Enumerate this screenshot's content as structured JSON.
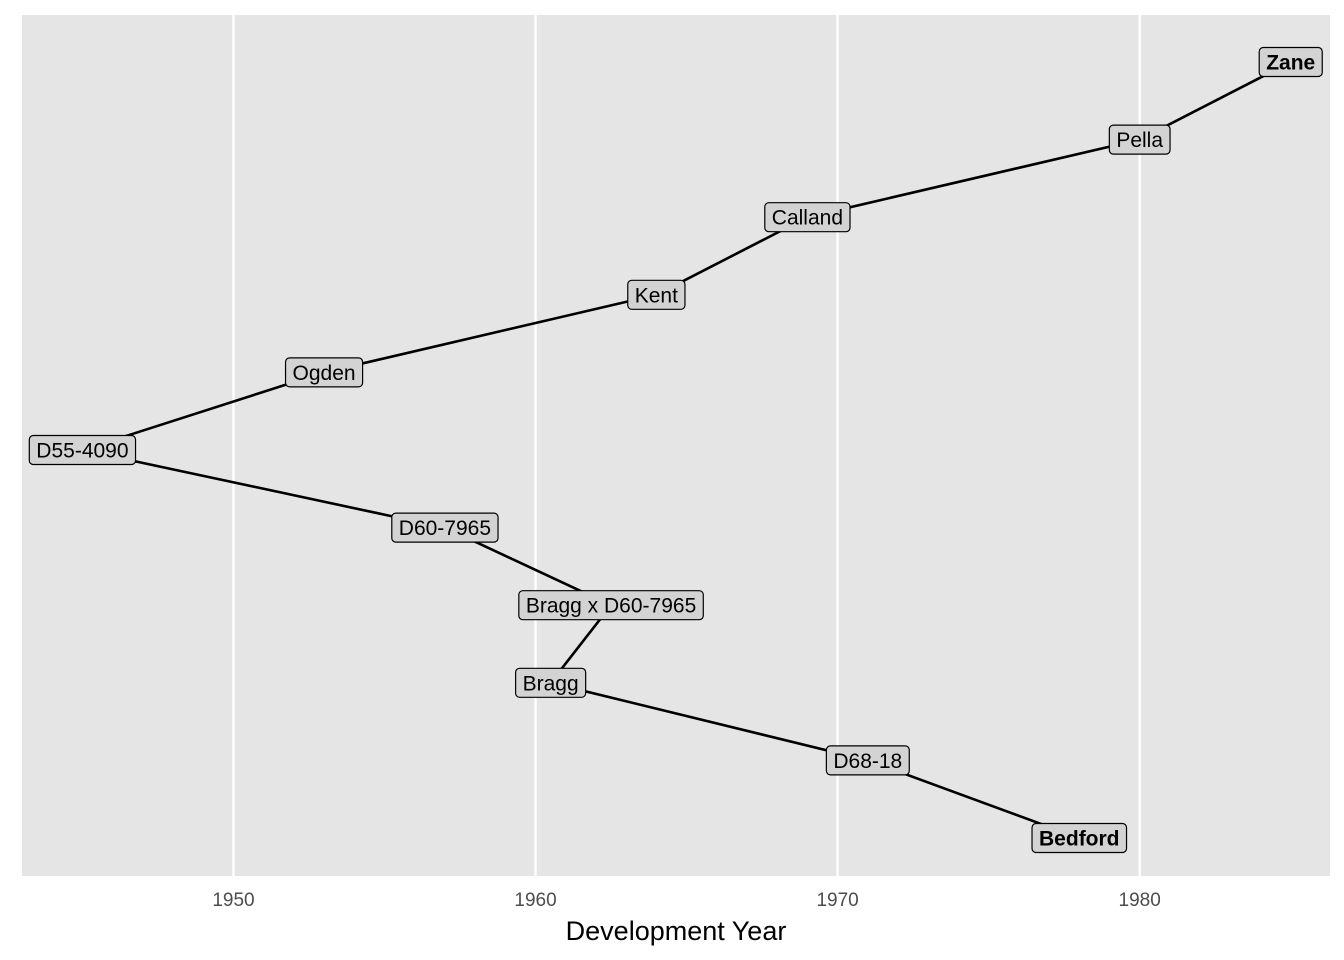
{
  "chart_data": {
    "type": "line",
    "title": "",
    "xlabel": "Development Year",
    "ylabel": "",
    "xlim": [
      1943,
      1986.3
    ],
    "x_ticks": [
      1950,
      1960,
      1970,
      1980
    ],
    "grid": true,
    "legend": "none",
    "nodes": [
      {
        "name": "Zane",
        "year": 1985,
        "bold": true
      },
      {
        "name": "Pella",
        "year": 1980,
        "bold": false
      },
      {
        "name": "Calland",
        "year": 1969,
        "bold": false
      },
      {
        "name": "Kent",
        "year": 1964,
        "bold": false
      },
      {
        "name": "Ogden",
        "year": 1953,
        "bold": false
      },
      {
        "name": "D55-4090",
        "year": 1945,
        "bold": false
      },
      {
        "name": "D60-7965",
        "year": 1957,
        "bold": false
      },
      {
        "name": "Bragg x D60-7965",
        "year": 1962.5,
        "bold": false
      },
      {
        "name": "Bragg",
        "year": 1960.5,
        "bold": false
      },
      {
        "name": "D68-18",
        "year": 1971,
        "bold": false
      },
      {
        "name": "Bedford",
        "year": 1978,
        "bold": true
      }
    ],
    "edges": [
      [
        "Zane",
        "Pella"
      ],
      [
        "Pella",
        "Calland"
      ],
      [
        "Calland",
        "Kent"
      ],
      [
        "Kent",
        "Ogden"
      ],
      [
        "Ogden",
        "D55-4090"
      ],
      [
        "D55-4090",
        "D60-7965"
      ],
      [
        "D60-7965",
        "Bragg x D60-7965"
      ],
      [
        "Bragg x D60-7965",
        "Bragg"
      ],
      [
        "Bragg",
        "D68-18"
      ],
      [
        "D68-18",
        "Bedford"
      ]
    ]
  },
  "colors": {
    "panel": "#e5e5e5",
    "grid": "#ffffff",
    "label_fill": "#d3d3d3",
    "line": "#000000",
    "tick_text": "#4d4d4d"
  }
}
